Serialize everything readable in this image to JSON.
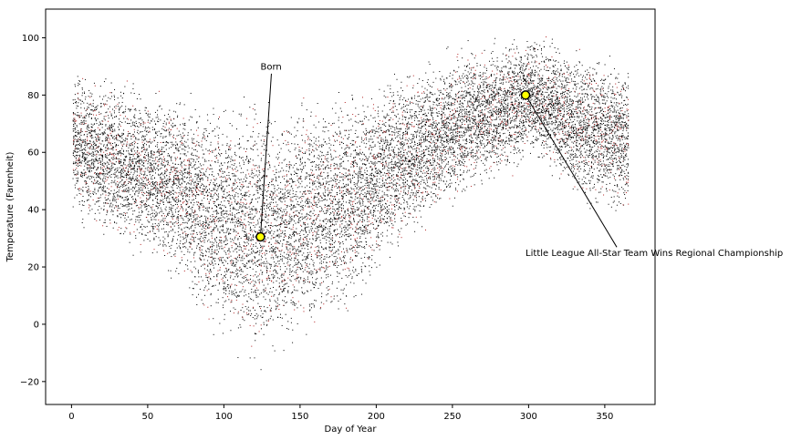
{
  "chart_data": {
    "type": "scatter",
    "title": "",
    "xlabel": "Day of Year",
    "ylabel": "Temperature (Farenheit)",
    "xlim": [
      -17,
      383
    ],
    "ylim": [
      -28,
      110
    ],
    "xticks": [
      0,
      50,
      100,
      150,
      200,
      250,
      300,
      350
    ],
    "yticks": [
      -20,
      0,
      20,
      40,
      60,
      80,
      100
    ],
    "grid": false,
    "legend": "none",
    "colors": {
      "points_primary": "#000000",
      "points_secondary": "#b22222",
      "highlight_fill": "#ffff00",
      "highlight_edge": "#000000"
    },
    "envelope": {
      "day": [
        0,
        15,
        30,
        45,
        60,
        75,
        90,
        105,
        120,
        135,
        150,
        165,
        180,
        195,
        210,
        225,
        240,
        255,
        270,
        285,
        300,
        315,
        330,
        345,
        365
      ],
      "upper": [
        92,
        90,
        89,
        88,
        86,
        85,
        84,
        84,
        83,
        83,
        84,
        85,
        86,
        88,
        90,
        94,
        96,
        100,
        101,
        103,
        104,
        103,
        101,
        98,
        95
      ],
      "lower": [
        35,
        28,
        25,
        20,
        15,
        5,
        -5,
        -12,
        -20,
        -15,
        -10,
        -5,
        0,
        10,
        20,
        28,
        35,
        40,
        45,
        48,
        55,
        50,
        40,
        35,
        35
      ]
    },
    "highlights": [
      {
        "name": "Born",
        "x": 124,
        "y": 30.5,
        "label_x": 124,
        "label_y": 90
      },
      {
        "name": "Little League All-Star Team Wins Regional Championship",
        "x": 298,
        "y": 80,
        "label_x": 298,
        "label_y": 25
      }
    ]
  }
}
